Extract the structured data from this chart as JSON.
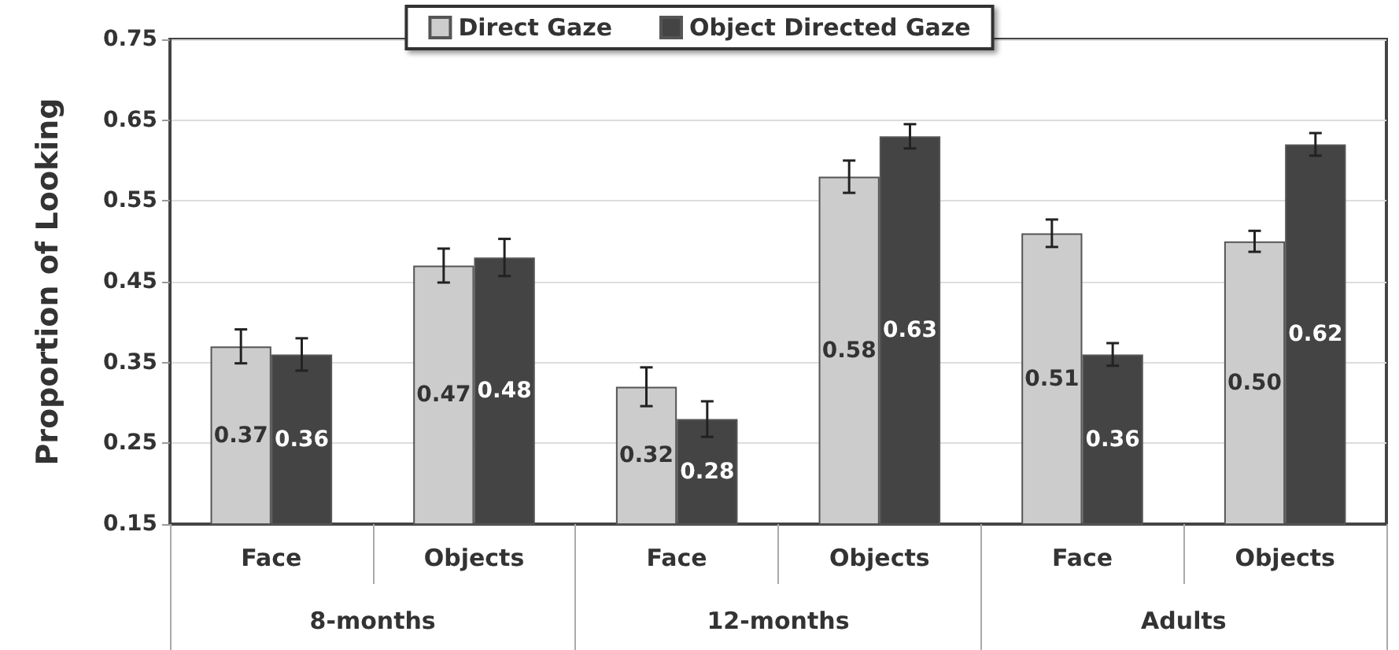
{
  "chart_data": {
    "type": "bar",
    "ylabel": "Proportion of Looking",
    "categories": [
      "Face",
      "Objects",
      "Face",
      "Objects",
      "Face",
      "Objects"
    ],
    "annotations": [
      "8-months",
      "12-months",
      "Adults"
    ],
    "series": [
      {
        "name": "Direct Gaze",
        "color": "#cccccc",
        "values": [
          0.37,
          0.47,
          0.32,
          0.58,
          0.51,
          0.5
        ],
        "value_labels": [
          "0.37",
          "0.47",
          "0.32",
          "0.58",
          "0.51",
          "0.50"
        ],
        "errors": [
          0.021,
          0.021,
          0.024,
          0.02,
          0.017,
          0.013
        ]
      },
      {
        "name": "Object Directed Gaze",
        "color": "#444444",
        "values": [
          0.36,
          0.48,
          0.28,
          0.63,
          0.36,
          0.62
        ],
        "value_labels": [
          "0.36",
          "0.48",
          "0.28",
          "0.63",
          "0.36",
          "0.62"
        ],
        "errors": [
          0.02,
          0.023,
          0.022,
          0.015,
          0.014,
          0.014
        ]
      }
    ],
    "ylim": [
      0.15,
      0.75
    ],
    "yticks": [
      0.15,
      0.25,
      0.35,
      0.45,
      0.55,
      0.65,
      0.75
    ],
    "grid": "y",
    "legend": "top"
  }
}
